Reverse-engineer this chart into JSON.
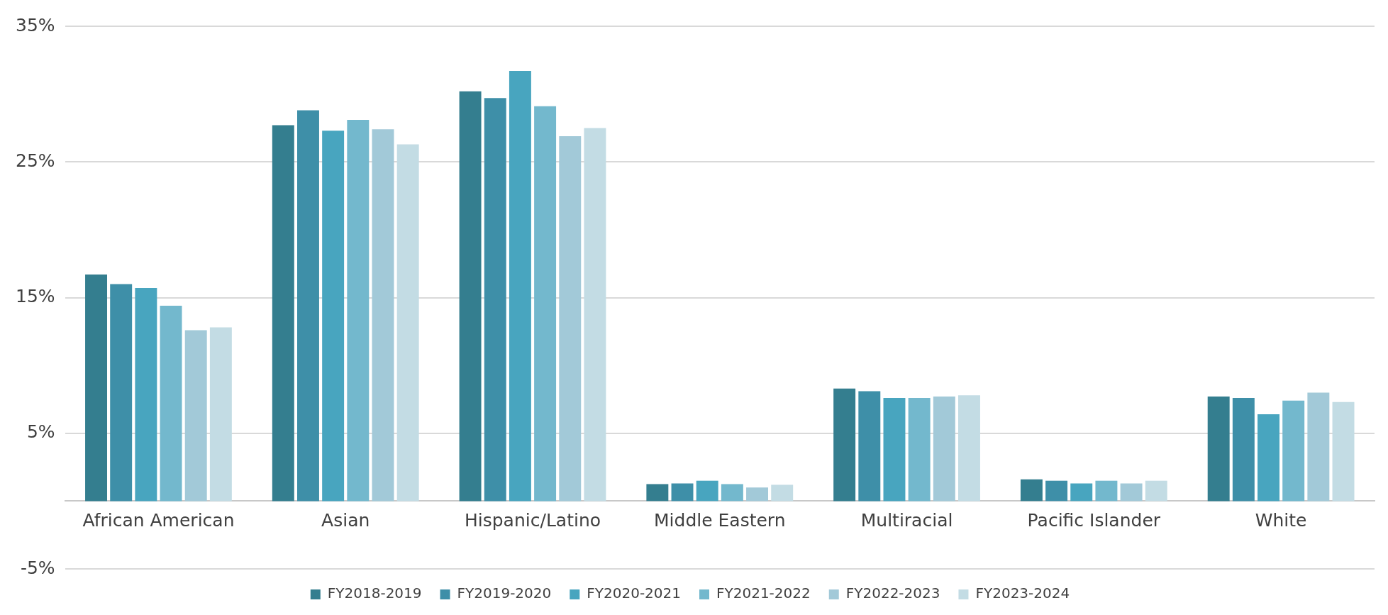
{
  "chart_data": {
    "type": "bar",
    "categories": [
      "African American",
      "Asian",
      "Hispanic/Latino",
      "Middle Eastern",
      "Multiracial",
      "Pacific Islander",
      "White"
    ],
    "series": [
      {
        "name": "FY2018-2019",
        "color": "#347e8f",
        "values": [
          16.7,
          27.7,
          30.2,
          1.25,
          8.3,
          1.6,
          7.7
        ]
      },
      {
        "name": "FY2019-2020",
        "color": "#3e8fa8",
        "values": [
          16.0,
          28.8,
          29.7,
          1.3,
          8.1,
          1.5,
          7.6
        ]
      },
      {
        "name": "FY2020-2021",
        "color": "#48a5bf",
        "values": [
          15.7,
          27.3,
          31.7,
          1.5,
          7.6,
          1.3,
          6.4
        ]
      },
      {
        "name": "FY2021-2022",
        "color": "#73b8cd",
        "values": [
          14.4,
          28.1,
          29.1,
          1.25,
          7.6,
          1.5,
          7.4
        ]
      },
      {
        "name": "FY2022-2023",
        "color": "#a2c9d8",
        "values": [
          12.6,
          27.4,
          26.9,
          1.0,
          7.7,
          1.3,
          8.0
        ]
      },
      {
        "name": "FY2023-2024",
        "color": "#c3dce4",
        "values": [
          12.8,
          26.3,
          27.5,
          1.2,
          7.8,
          1.5,
          7.3
        ]
      }
    ],
    "ylim": [
      -5,
      35
    ],
    "yticks": [
      {
        "value": -5,
        "label": "-5%"
      },
      {
        "value": 5,
        "label": "5%"
      },
      {
        "value": 15,
        "label": "15%"
      },
      {
        "value": 25,
        "label": "25%"
      },
      {
        "value": 35,
        "label": "35%"
      }
    ],
    "grid": "y",
    "legend": "bottom"
  }
}
